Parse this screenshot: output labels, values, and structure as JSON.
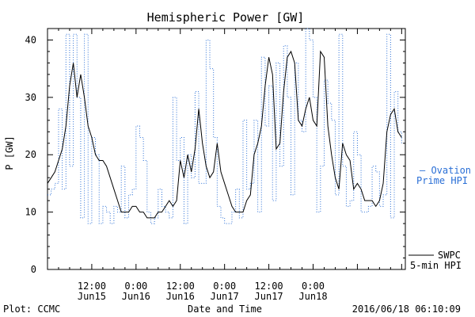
{
  "chart_data": {
    "type": "line",
    "title": "Hemispheric Power [GW]",
    "ylabel": "P [GW]",
    "xlabel": "Date and Time",
    "ylim": [
      0,
      42
    ],
    "yticks": [
      0,
      10,
      20,
      30,
      40
    ],
    "xlim": [
      0,
      97
    ],
    "xticks": [
      {
        "x": 12,
        "time": "12:00",
        "date": "Jun15"
      },
      {
        "x": 24,
        "time": "0:00",
        "date": "Jun16"
      },
      {
        "x": 36,
        "time": "12:00",
        "date": "Jun16"
      },
      {
        "x": 48,
        "time": "0:00",
        "date": "Jun17"
      },
      {
        "x": 60,
        "time": "12:00",
        "date": "Jun17"
      },
      {
        "x": 72,
        "time": "0:00",
        "date": "Jun18"
      }
    ],
    "x_unit": "hours since Jun15 0:00",
    "series": [
      {
        "name": "Ovation Prime HPI",
        "style": "dotted-step",
        "color": "#2a6fd6",
        "x": [
          0,
          1,
          2,
          3,
          4,
          5,
          6,
          7,
          8,
          9,
          10,
          11,
          12,
          13,
          14,
          15,
          16,
          17,
          18,
          19,
          20,
          21,
          22,
          23,
          24,
          25,
          26,
          27,
          28,
          29,
          30,
          31,
          32,
          33,
          34,
          35,
          36,
          37,
          38,
          39,
          40,
          41,
          42,
          43,
          44,
          45,
          46,
          47,
          48,
          49,
          50,
          51,
          52,
          53,
          54,
          55,
          56,
          57,
          58,
          59,
          60,
          61,
          62,
          63,
          64,
          65,
          66,
          67,
          68,
          69,
          70,
          71,
          72,
          73,
          74,
          75,
          76,
          77,
          78,
          79,
          80,
          81,
          82,
          83,
          84,
          85,
          86,
          87,
          88,
          89,
          90,
          91,
          92,
          93,
          94,
          95,
          96
        ],
        "values": [
          13,
          14,
          15,
          28,
          14,
          41,
          18,
          41,
          30,
          9,
          41,
          8,
          23,
          20,
          8,
          11,
          10,
          8,
          11,
          10,
          18,
          9,
          13,
          14,
          25,
          23,
          19,
          10,
          8,
          9,
          14,
          11,
          10,
          9,
          30,
          19,
          23,
          8,
          20,
          16,
          31,
          15,
          15,
          40,
          35,
          23,
          11,
          9,
          8,
          8,
          10,
          14,
          9,
          26,
          14,
          15,
          26,
          10,
          37,
          25,
          32,
          12,
          36,
          18,
          39,
          30,
          13,
          36,
          26,
          24,
          42,
          40,
          30,
          10,
          18,
          33,
          29,
          26,
          13,
          41,
          18,
          11,
          12,
          24,
          20,
          10,
          10,
          11,
          18,
          17,
          11,
          13,
          41,
          9,
          31,
          24,
          22
        ]
      },
      {
        "name": "SWPC 5-min HPI",
        "style": "solid",
        "color": "#000000",
        "x": [
          0,
          1,
          2,
          3,
          4,
          5,
          6,
          7,
          8,
          9,
          10,
          11,
          12,
          13,
          14,
          15,
          16,
          17,
          18,
          19,
          20,
          21,
          22,
          23,
          24,
          25,
          26,
          27,
          28,
          29,
          30,
          31,
          32,
          33,
          34,
          35,
          36,
          37,
          38,
          39,
          40,
          41,
          42,
          43,
          44,
          45,
          46,
          47,
          48,
          49,
          50,
          51,
          52,
          53,
          54,
          55,
          56,
          57,
          58,
          59,
          60,
          61,
          62,
          63,
          64,
          65,
          66,
          67,
          68,
          69,
          70,
          71,
          72,
          73,
          74,
          75,
          76,
          77,
          78,
          79,
          80,
          81,
          82,
          83,
          84,
          85,
          86,
          87,
          88,
          89,
          90,
          91,
          92,
          93,
          94,
          95,
          96
        ],
        "values": [
          15,
          16,
          17,
          19,
          21,
          25,
          32,
          36,
          30,
          34,
          30,
          25,
          23,
          20,
          19,
          19,
          18,
          16,
          14,
          12,
          10,
          10,
          10,
          11,
          11,
          10,
          10,
          9,
          9,
          9,
          10,
          10,
          11,
          12,
          11,
          12,
          19,
          16,
          20,
          17,
          21,
          28,
          22,
          18,
          16,
          17,
          22,
          17,
          15,
          13,
          11,
          10,
          10,
          10,
          12,
          13,
          20,
          22,
          25,
          32,
          37,
          34,
          21,
          22,
          31,
          37,
          38,
          36,
          26,
          25,
          28,
          30,
          26,
          25,
          38,
          37,
          25,
          20,
          16,
          14,
          22,
          20,
          19,
          14,
          15,
          14,
          12,
          12,
          12,
          11,
          12,
          15,
          24,
          27,
          28,
          24,
          23
        ]
      }
    ],
    "legend": [
      {
        "mark": "— Ovation",
        "line2": "Prime HPI",
        "color": "#2a6fd6"
      },
      {
        "mark": "SWPC",
        "line2": "5-min HPI",
        "color": "#000000"
      }
    ],
    "footer": {
      "left": "Plot: CCMC",
      "right": "2016/06/18 06:10:09"
    }
  }
}
